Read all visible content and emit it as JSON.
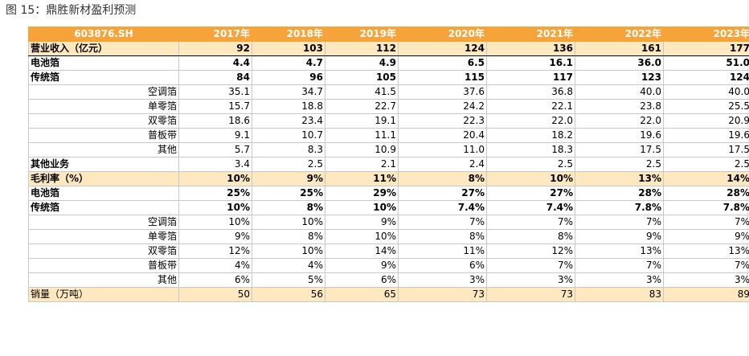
{
  "caption": "图 15：鼎胜新材盈利预测",
  "table": {
    "header": [
      "603876.SH",
      "2017年",
      "2018年",
      "2019年",
      "2020年",
      "2021年",
      "2022年",
      "2023年"
    ],
    "rows": [
      {
        "label": "营业收入（亿元）",
        "style": "band-rev",
        "values": [
          "92",
          "103",
          "112",
          "124",
          "136",
          "161",
          "177"
        ]
      },
      {
        "label": "电池箔",
        "style": "sub-bold",
        "values": [
          "4.4",
          "4.7",
          "4.9",
          "6.5",
          "16.1",
          "36.0",
          "51.0"
        ]
      },
      {
        "label": "传统箔",
        "style": "sub-bold",
        "values": [
          "84",
          "96",
          "105",
          "115",
          "117",
          "123",
          "124"
        ]
      },
      {
        "label": "空调箔",
        "style": "item",
        "values": [
          "35.1",
          "34.7",
          "41.5",
          "37.6",
          "36.8",
          "40.0",
          "40.0"
        ]
      },
      {
        "label": "单零箔",
        "style": "item",
        "values": [
          "15.7",
          "18.8",
          "22.7",
          "24.2",
          "22.1",
          "23.8",
          "25.5"
        ]
      },
      {
        "label": "双零箔",
        "style": "item",
        "values": [
          "18.6",
          "23.4",
          "19.1",
          "22.3",
          "22.0",
          "22.0",
          "20.9"
        ]
      },
      {
        "label": "普板带",
        "style": "item",
        "values": [
          "9.1",
          "10.7",
          "11.1",
          "20.4",
          "18.2",
          "19.6",
          "19.6"
        ]
      },
      {
        "label": "其他",
        "style": "item",
        "values": [
          "5.7",
          "8.3",
          "10.9",
          "11.0",
          "18.3",
          "17.5",
          "17.5"
        ]
      },
      {
        "label": "其他业务",
        "style": "other",
        "values": [
          "3.4",
          "2.5",
          "2.1",
          "2.4",
          "2.5",
          "2.5",
          "2.5"
        ]
      },
      {
        "label": "毛利率（%）",
        "style": "band",
        "values": [
          "10%",
          "9%",
          "11%",
          "8%",
          "10%",
          "13%",
          "14%"
        ]
      },
      {
        "label": "电池箔",
        "style": "sub-bold",
        "values": [
          "25%",
          "25%",
          "29%",
          "27%",
          "27%",
          "28%",
          "28%"
        ]
      },
      {
        "label": "传统箔",
        "style": "sub-bold",
        "values": [
          "10%",
          "8%",
          "10%",
          "7.4%",
          "7.4%",
          "7.8%",
          "7.8%"
        ]
      },
      {
        "label": "空调箔",
        "style": "item",
        "values": [
          "10%",
          "10%",
          "9%",
          "7%",
          "7%",
          "7%",
          "7%"
        ]
      },
      {
        "label": "单零箔",
        "style": "item",
        "values": [
          "9%",
          "8%",
          "10%",
          "8%",
          "8%",
          "9%",
          "9%"
        ]
      },
      {
        "label": "双零箔",
        "style": "item",
        "values": [
          "12%",
          "10%",
          "14%",
          "11%",
          "12%",
          "13%",
          "13%"
        ]
      },
      {
        "label": "普板带",
        "style": "item",
        "values": [
          "4%",
          "4%",
          "9%",
          "6%",
          "7%",
          "7%",
          "7%"
        ]
      },
      {
        "label": "其他",
        "style": "item",
        "values": [
          "6%",
          "5%",
          "6%",
          "3%",
          "3%",
          "3%",
          "3%"
        ]
      },
      {
        "label": "销量（万吨）",
        "style": "band-plain",
        "values": [
          "50",
          "56",
          "65",
          "73",
          "73",
          "83",
          "89"
        ]
      }
    ]
  },
  "colors": {
    "header_bg": "#f6a33a",
    "band_bg": "#fde8bf"
  }
}
